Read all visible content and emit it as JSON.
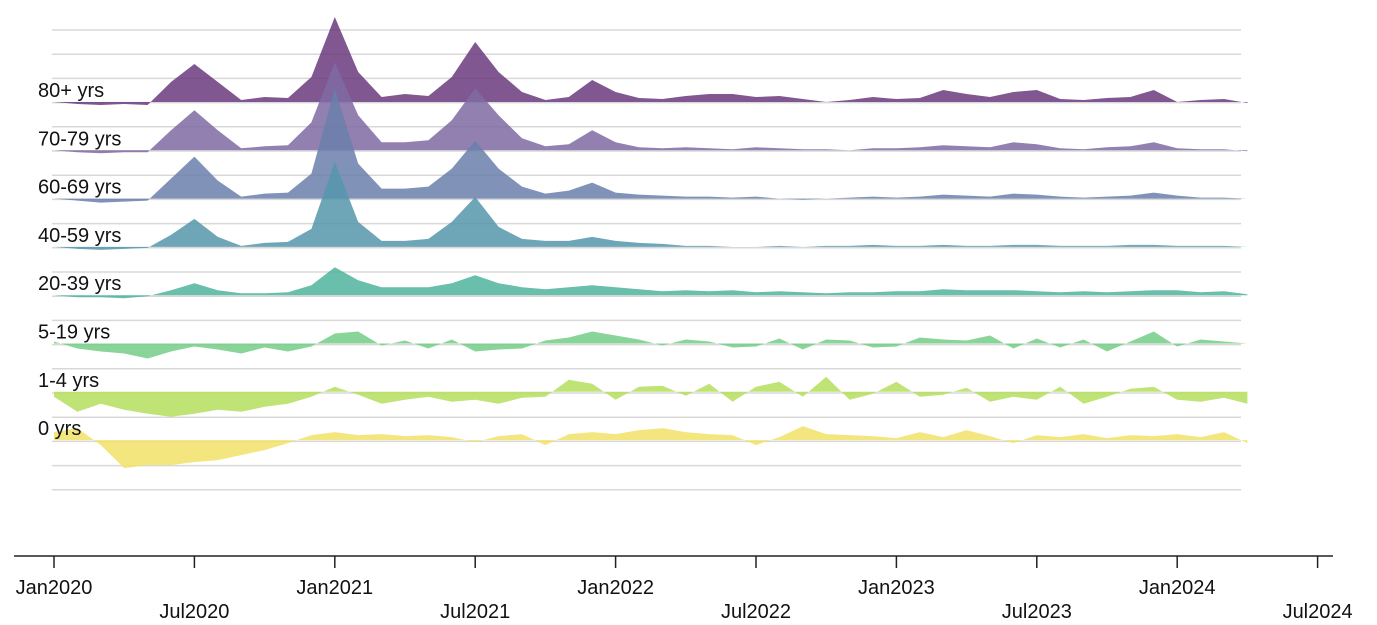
{
  "chart_data": {
    "type": "ridgeline",
    "x": [
      "2020-01",
      "2020-02",
      "2020-03",
      "2020-04",
      "2020-05",
      "2020-06",
      "2020-07",
      "2020-08",
      "2020-09",
      "2020-10",
      "2020-11",
      "2020-12",
      "2021-01",
      "2021-02",
      "2021-03",
      "2021-04",
      "2021-05",
      "2021-06",
      "2021-07",
      "2021-08",
      "2021-09",
      "2021-10",
      "2021-11",
      "2021-12",
      "2022-01",
      "2022-02",
      "2022-03",
      "2022-04",
      "2022-05",
      "2022-06",
      "2022-07",
      "2022-08",
      "2022-09",
      "2022-10",
      "2022-11",
      "2022-12",
      "2023-01",
      "2023-02",
      "2023-03",
      "2023-04",
      "2023-05",
      "2023-06",
      "2023-07",
      "2023-08",
      "2023-09",
      "2023-10",
      "2023-11",
      "2023-12",
      "2024-01",
      "2024-02",
      "2024-03",
      "2024-04"
    ],
    "xticks": [
      {
        "value": "2020-01",
        "label": "Jan2020"
      },
      {
        "value": "2020-07",
        "label": "Jul2020"
      },
      {
        "value": "2021-01",
        "label": "Jan2021"
      },
      {
        "value": "2021-07",
        "label": "Jul2021"
      },
      {
        "value": "2022-01",
        "label": "Jan2022"
      },
      {
        "value": "2022-07",
        "label": "Jul2022"
      },
      {
        "value": "2023-01",
        "label": "Jan2023"
      },
      {
        "value": "2023-07",
        "label": "Jul2023"
      },
      {
        "value": "2024-01",
        "label": "Jan2024"
      },
      {
        "value": "2024-07",
        "label": "Jul2024"
      }
    ],
    "grid": true,
    "series": [
      {
        "name": "80+ yrs",
        "color": "#6a3a7c",
        "values": [
          0,
          -2,
          -3,
          -2,
          -3,
          20,
          38,
          20,
          2,
          5,
          4,
          25,
          85,
          30,
          5,
          8,
          6,
          25,
          60,
          30,
          10,
          2,
          5,
          22,
          10,
          4,
          3,
          6,
          8,
          8,
          5,
          6,
          3,
          0,
          2,
          5,
          3,
          4,
          12,
          8,
          5,
          10,
          12,
          3,
          2,
          4,
          5,
          12,
          0,
          2,
          3,
          -1
        ]
      },
      {
        "name": "70-79 yrs",
        "color": "#7f6aa2",
        "values": [
          0,
          -2,
          -3,
          -2,
          -2,
          20,
          40,
          20,
          2,
          4,
          5,
          28,
          88,
          35,
          8,
          8,
          10,
          30,
          62,
          35,
          12,
          4,
          6,
          20,
          8,
          3,
          2,
          3,
          2,
          1,
          3,
          2,
          1,
          1,
          0,
          2,
          2,
          3,
          5,
          4,
          3,
          8,
          6,
          2,
          1,
          3,
          4,
          8,
          2,
          1,
          1,
          -1
        ]
      },
      {
        "name": "60-69 yrs",
        "color": "#6a7fab",
        "values": [
          0,
          -2,
          -4,
          -3,
          -2,
          20,
          42,
          18,
          2,
          5,
          6,
          25,
          110,
          35,
          10,
          10,
          12,
          30,
          58,
          30,
          12,
          5,
          8,
          16,
          6,
          4,
          3,
          2,
          2,
          1,
          2,
          0,
          -1,
          0,
          1,
          2,
          1,
          2,
          4,
          3,
          2,
          5,
          4,
          2,
          1,
          2,
          3,
          6,
          3,
          1,
          1,
          0
        ]
      },
      {
        "name": "40-59 yrs",
        "color": "#5596ab",
        "values": [
          0,
          -2,
          -3,
          -2,
          -1,
          12,
          28,
          10,
          1,
          4,
          5,
          18,
          85,
          25,
          6,
          6,
          8,
          25,
          50,
          20,
          8,
          6,
          6,
          10,
          6,
          4,
          3,
          1,
          1,
          0,
          0,
          1,
          0,
          1,
          1,
          2,
          1,
          1,
          2,
          1,
          1,
          2,
          2,
          1,
          1,
          1,
          2,
          2,
          1,
          1,
          1,
          0
        ]
      },
      {
        "name": "20-39 yrs",
        "color": "#4fb39e",
        "values": [
          0,
          -2,
          -2,
          -3,
          -1,
          5,
          12,
          5,
          2,
          2,
          3,
          10,
          28,
          15,
          8,
          8,
          8,
          12,
          20,
          12,
          8,
          6,
          8,
          10,
          8,
          6,
          4,
          5,
          4,
          5,
          3,
          4,
          3,
          2,
          3,
          3,
          4,
          4,
          6,
          5,
          5,
          5,
          4,
          3,
          4,
          3,
          4,
          5,
          5,
          3,
          4,
          1
        ]
      },
      {
        "name": "5-19 yrs",
        "color": "#74cd86",
        "values": [
          2,
          -5,
          -8,
          -10,
          -15,
          -8,
          -3,
          -6,
          -10,
          -4,
          -8,
          -3,
          10,
          12,
          -2,
          3,
          -5,
          4,
          -8,
          -6,
          -5,
          3,
          6,
          12,
          8,
          4,
          -2,
          4,
          2,
          -4,
          -3,
          5,
          -6,
          4,
          3,
          -4,
          -3,
          6,
          4,
          3,
          8,
          -5,
          5,
          -4,
          4,
          -8,
          2,
          12,
          -3,
          4,
          2,
          0
        ]
      },
      {
        "name": "1-4 yrs",
        "color": "#b5de5e",
        "values": [
          -5,
          -20,
          -12,
          -18,
          -22,
          -25,
          -22,
          -18,
          -20,
          -15,
          -12,
          -5,
          5,
          -3,
          -12,
          -8,
          -5,
          -10,
          -8,
          -12,
          -6,
          -5,
          12,
          8,
          -8,
          5,
          6,
          -4,
          8,
          -10,
          5,
          10,
          -5,
          15,
          -8,
          -2,
          10,
          -5,
          -3,
          4,
          -10,
          -5,
          -8,
          5,
          -12,
          -5,
          3,
          5,
          -8,
          -10,
          -6,
          -12
        ]
      },
      {
        "name": "0 yrs",
        "color": "#f2e268",
        "values": [
          8,
          12,
          -5,
          -28,
          -25,
          -25,
          -22,
          -20,
          -15,
          -10,
          -3,
          5,
          8,
          5,
          6,
          4,
          5,
          3,
          -2,
          4,
          6,
          -5,
          6,
          8,
          6,
          10,
          12,
          8,
          6,
          5,
          -5,
          3,
          14,
          6,
          5,
          4,
          2,
          8,
          3,
          10,
          4,
          -3,
          5,
          3,
          6,
          2,
          5,
          4,
          6,
          3,
          8,
          -3
        ]
      }
    ]
  }
}
